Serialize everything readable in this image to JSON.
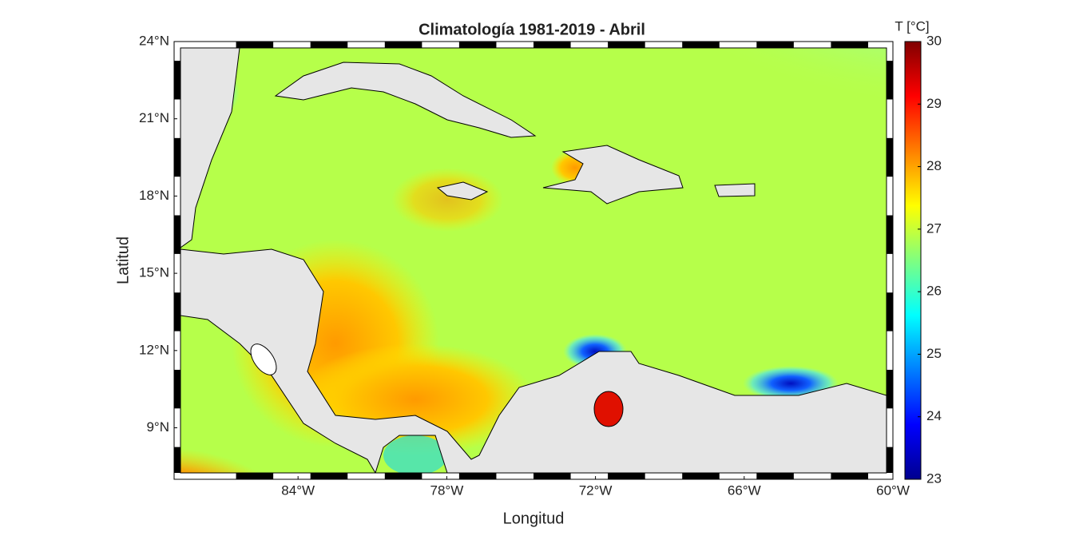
{
  "chart_data": {
    "type": "map",
    "title": "Climatología 1981-2019 - Abril",
    "x_label": "Longitud",
    "y_label": "Latitud",
    "colorbar_label": "T [°C]",
    "colormap": "jet",
    "clim": [
      23,
      30
    ],
    "cticks": [
      23,
      24,
      25,
      26,
      27,
      28,
      29,
      30
    ],
    "xlim": [
      -89,
      -60
    ],
    "ylim": [
      7,
      24
    ],
    "xticks": [
      {
        "value": -84,
        "label": "84°W"
      },
      {
        "value": -78,
        "label": "78°W"
      },
      {
        "value": -72,
        "label": "72°W"
      },
      {
        "value": -66,
        "label": "66°W"
      },
      {
        "value": -60,
        "label": "60°W"
      }
    ],
    "yticks": [
      {
        "value": 9,
        "label": "9°N"
      },
      {
        "value": 12,
        "label": "12°N"
      },
      {
        "value": 15,
        "label": "15°N"
      },
      {
        "value": 18,
        "label": "18°N"
      },
      {
        "value": 21,
        "label": "21°N"
      },
      {
        "value": 24,
        "label": "24°N"
      }
    ]
  }
}
